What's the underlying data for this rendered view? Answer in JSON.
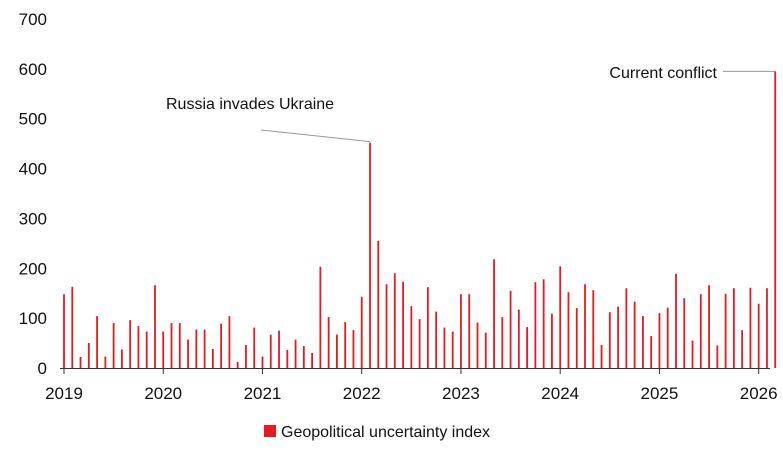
{
  "chart_data": {
    "type": "bar",
    "series": [
      {
        "name": "Geopolitical uncertainty index",
        "color": "#e31b23",
        "x": [
          "2019-01",
          "2019-02",
          "2019-03",
          "2019-04",
          "2019-05",
          "2019-06",
          "2019-07",
          "2019-08",
          "2019-09",
          "2019-10",
          "2019-11",
          "2019-12",
          "2020-01",
          "2020-02",
          "2020-03",
          "2020-04",
          "2020-05",
          "2020-06",
          "2020-07",
          "2020-08",
          "2020-09",
          "2020-10",
          "2020-11",
          "2020-12",
          "2021-01",
          "2021-02",
          "2021-03",
          "2021-04",
          "2021-05",
          "2021-06",
          "2021-07",
          "2021-08",
          "2021-09",
          "2021-10",
          "2021-11",
          "2021-12",
          "2022-01",
          "2022-02",
          "2022-03",
          "2022-04",
          "2022-05",
          "2022-06",
          "2022-07",
          "2022-08",
          "2022-09",
          "2022-10",
          "2022-11",
          "2022-12",
          "2023-01",
          "2023-02",
          "2023-03",
          "2023-04",
          "2023-05",
          "2023-06",
          "2023-07",
          "2023-08",
          "2023-09",
          "2023-10",
          "2023-11",
          "2023-12",
          "2024-01",
          "2024-02",
          "2024-03",
          "2024-04",
          "2024-05",
          "2024-06",
          "2024-07",
          "2024-08",
          "2024-09",
          "2024-10",
          "2024-11",
          "2024-12",
          "2025-01",
          "2025-02",
          "2025-03",
          "2025-04",
          "2025-05",
          "2025-06",
          "2025-07",
          "2025-08",
          "2025-09",
          "2025-10",
          "2025-11",
          "2025-12",
          "2026-01",
          "2026-02",
          "2026-03"
        ],
        "values": [
          148,
          163,
          22,
          50,
          104,
          23,
          90,
          37,
          96,
          84,
          73,
          166,
          73,
          90,
          90,
          57,
          77,
          77,
          38,
          89,
          104,
          12,
          46,
          81,
          23,
          67,
          75,
          36,
          57,
          44,
          30,
          203,
          102,
          67,
          92,
          76,
          143,
          452,
          255,
          168,
          190,
          173,
          124,
          98,
          162,
          113,
          81,
          73,
          148,
          148,
          91,
          71,
          218,
          102,
          155,
          117,
          82,
          172,
          178,
          109,
          204,
          152,
          120,
          168,
          156,
          46,
          112,
          123,
          160,
          133,
          104,
          64,
          110,
          121,
          189,
          140,
          55,
          148,
          166,
          45,
          149,
          160,
          76,
          161,
          129,
          160,
          595
        ]
      }
    ],
    "xaxis": {
      "ticks": [
        "2019",
        "2020",
        "2021",
        "2022",
        "2023",
        "2024",
        "2025",
        "2026"
      ],
      "range": [
        "2019-01",
        "2026-03"
      ]
    },
    "yaxis": {
      "ticks": [
        "0",
        "100",
        "200",
        "300",
        "400",
        "500",
        "600",
        "700"
      ],
      "ylim": [
        0,
        700
      ]
    },
    "grid": false,
    "legend": {
      "position": "bottom-center",
      "label": "Geopolitical uncertainty index"
    },
    "annotations": [
      {
        "text": "Russia invades Ukraine",
        "target": "2022-02",
        "value": 452
      },
      {
        "text": "Current conflict",
        "target": "2026-03",
        "value": 595
      }
    ],
    "colors": {
      "bar": "#e31b23",
      "axis": "#333333",
      "leader": "#9a9a9a",
      "text": "#111111"
    }
  }
}
